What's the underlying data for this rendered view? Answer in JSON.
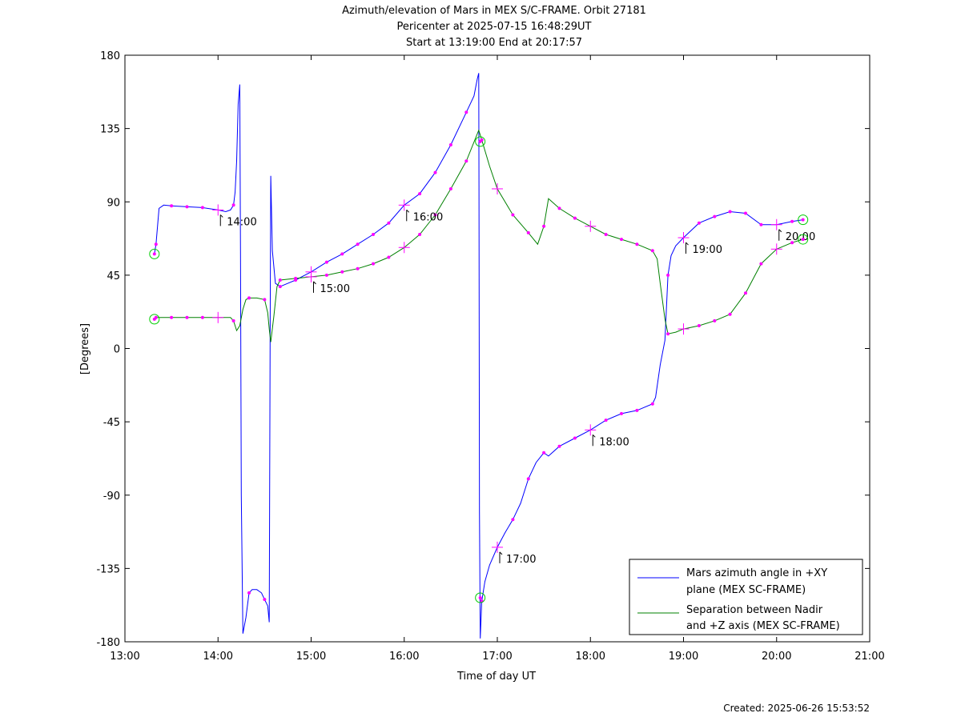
{
  "chart_data": {
    "type": "line",
    "title_lines": [
      "Azimuth/elevation of Mars in MEX S/C-FRAME.  Orbit 27181",
      "Pericenter at 2025-07-15 16:48:29UT",
      "Start at 13:19:00 End at 20:17:57"
    ],
    "xlabel": "Time of day UT",
    "ylabel": "[Degrees]",
    "xlim": [
      "13:00",
      "21:00"
    ],
    "ylim": [
      -180,
      180
    ],
    "x_ticks": [
      "13:00",
      "14:00",
      "15:00",
      "16:00",
      "17:00",
      "18:00",
      "19:00",
      "20:00",
      "21:00"
    ],
    "y_ticks": [
      "180",
      "135",
      "90",
      "45",
      "0",
      "-45",
      "-90",
      "-135",
      "-180"
    ],
    "grid": false,
    "legend_position": "bottom-right",
    "footer": "Created: 2025-06-26 15:53:52",
    "series": [
      {
        "name": "Mars azimuth angle in +XY plane (MEX SC-FRAME)",
        "legend_lines": [
          "Mars azimuth angle in +XY",
          "plane (MEX SC-FRAME)"
        ],
        "color": "#0000ff",
        "points": [
          [
            "13:19",
            58
          ],
          [
            "13:20",
            64
          ],
          [
            "13:22",
            86
          ],
          [
            "13:25",
            88
          ],
          [
            "13:30",
            87.5
          ],
          [
            "13:40",
            87
          ],
          [
            "13:50",
            86.5
          ],
          [
            "14:00",
            85
          ],
          [
            "14:05",
            84
          ],
          [
            "14:08",
            85
          ],
          [
            "14:10",
            88
          ],
          [
            "14:11",
            96
          ],
          [
            "14:12",
            115
          ],
          [
            "14:13",
            150
          ],
          [
            "14:14",
            162
          ],
          [
            "14:14.5",
            60
          ],
          [
            "14:15",
            -90
          ],
          [
            "14:16",
            -175
          ],
          [
            "14:18",
            -165
          ],
          [
            "14:20",
            -150
          ],
          [
            "14:22",
            -148
          ],
          [
            "14:25",
            -148
          ],
          [
            "14:28",
            -150
          ],
          [
            "14:30",
            -154
          ],
          [
            "14:32",
            -158
          ],
          [
            "14:33",
            -168
          ],
          [
            "14:33.6",
            20
          ],
          [
            "14:34",
            106
          ],
          [
            "14:35",
            60
          ],
          [
            "14:37",
            40
          ],
          [
            "14:40",
            38
          ],
          [
            "14:45",
            40
          ],
          [
            "14:50",
            42
          ],
          [
            "15:00",
            47
          ],
          [
            "15:10",
            53
          ],
          [
            "15:20",
            58
          ],
          [
            "15:30",
            64
          ],
          [
            "15:40",
            70
          ],
          [
            "15:50",
            77
          ],
          [
            "16:00",
            88
          ],
          [
            "16:10",
            95
          ],
          [
            "16:20",
            108
          ],
          [
            "16:30",
            125
          ],
          [
            "16:40",
            145
          ],
          [
            "16:45",
            155
          ],
          [
            "16:47",
            165
          ],
          [
            "16:48",
            169
          ],
          [
            "16:48.2",
            100
          ],
          [
            "16:48.5",
            -100
          ],
          [
            "16:49",
            -178
          ],
          [
            "16:50",
            -155
          ],
          [
            "16:52",
            -143
          ],
          [
            "16:55",
            -133
          ],
          [
            "17:00",
            -122
          ],
          [
            "17:05",
            -113
          ],
          [
            "17:10",
            -105
          ],
          [
            "17:15",
            -95
          ],
          [
            "17:20",
            -80
          ],
          [
            "17:25",
            -70
          ],
          [
            "17:30",
            -64
          ],
          [
            "17:33",
            -66
          ],
          [
            "17:40",
            -60
          ],
          [
            "17:50",
            -55
          ],
          [
            "18:00",
            -50
          ],
          [
            "18:10",
            -44
          ],
          [
            "18:20",
            -40
          ],
          [
            "18:30",
            -38
          ],
          [
            "18:40",
            -34
          ],
          [
            "18:42",
            -30
          ],
          [
            "18:45",
            -10
          ],
          [
            "18:48",
            5
          ],
          [
            "18:50",
            45
          ],
          [
            "18:52",
            57
          ],
          [
            "18:55",
            63
          ],
          [
            "19:00",
            68
          ],
          [
            "19:10",
            77
          ],
          [
            "19:20",
            81
          ],
          [
            "19:30",
            84
          ],
          [
            "19:40",
            83
          ],
          [
            "19:50",
            76
          ],
          [
            "20:00",
            76
          ],
          [
            "20:10",
            78
          ],
          [
            "20:17",
            79
          ]
        ]
      },
      {
        "name": "Separation between Nadir and +Z axis (MEX SC-FRAME)",
        "legend_lines": [
          "Separation between Nadir",
          "and +Z axis (MEX SC-FRAME)"
        ],
        "color": "#008000",
        "points": [
          [
            "13:19",
            18
          ],
          [
            "13:20",
            19
          ],
          [
            "13:30",
            19
          ],
          [
            "13:40",
            19
          ],
          [
            "13:50",
            19
          ],
          [
            "14:00",
            19
          ],
          [
            "14:08",
            19
          ],
          [
            "14:10",
            17
          ],
          [
            "14:12",
            11
          ],
          [
            "14:14",
            14
          ],
          [
            "14:16",
            24
          ],
          [
            "14:18",
            30
          ],
          [
            "14:20",
            31
          ],
          [
            "14:25",
            31
          ],
          [
            "14:30",
            30
          ],
          [
            "14:32",
            22
          ],
          [
            "14:33",
            12
          ],
          [
            "14:34",
            4
          ],
          [
            "14:36",
            20
          ],
          [
            "14:38",
            38
          ],
          [
            "14:40",
            42
          ],
          [
            "14:50",
            43
          ],
          [
            "15:00",
            44
          ],
          [
            "15:10",
            45
          ],
          [
            "15:20",
            47
          ],
          [
            "15:30",
            49
          ],
          [
            "15:40",
            52
          ],
          [
            "15:50",
            56
          ],
          [
            "16:00",
            62
          ],
          [
            "16:10",
            70
          ],
          [
            "16:20",
            82
          ],
          [
            "16:30",
            98
          ],
          [
            "16:40",
            115
          ],
          [
            "16:48",
            134
          ],
          [
            "16:50",
            128
          ],
          [
            "16:55",
            112
          ],
          [
            "17:00",
            98
          ],
          [
            "17:10",
            82
          ],
          [
            "17:20",
            71
          ],
          [
            "17:26",
            64
          ],
          [
            "17:30",
            75
          ],
          [
            "17:33",
            92
          ],
          [
            "17:40",
            86
          ],
          [
            "17:50",
            80
          ],
          [
            "18:00",
            75
          ],
          [
            "18:10",
            70
          ],
          [
            "18:20",
            67
          ],
          [
            "18:30",
            64
          ],
          [
            "18:40",
            60
          ],
          [
            "18:43",
            55
          ],
          [
            "18:45",
            40
          ],
          [
            "18:48",
            18
          ],
          [
            "18:50",
            9
          ],
          [
            "18:55",
            10
          ],
          [
            "19:00",
            12
          ],
          [
            "19:10",
            14
          ],
          [
            "19:20",
            17
          ],
          [
            "19:30",
            21
          ],
          [
            "19:40",
            34
          ],
          [
            "19:50",
            52
          ],
          [
            "20:00",
            61
          ],
          [
            "20:10",
            65
          ],
          [
            "20:17",
            67
          ]
        ]
      }
    ],
    "start_markers": [
      [
        "13:19",
        58
      ],
      [
        "13:19",
        18
      ]
    ],
    "end_markers": [
      [
        "20:17",
        79
      ],
      [
        "20:17",
        67
      ]
    ],
    "pericenter_markers": [
      [
        "16:49",
        -153
      ],
      [
        "16:49",
        127
      ]
    ],
    "hour_marks": [
      {
        "x": "14:00",
        "label": "14:00",
        "series": 0
      },
      {
        "x": "15:00",
        "label": "15:00",
        "series": 1
      },
      {
        "x": "16:00",
        "label": "16:00",
        "series": 0
      },
      {
        "x": "17:00",
        "label": "17:00",
        "series": 0
      },
      {
        "x": "18:00",
        "label": "18:00",
        "series": 0
      },
      {
        "x": "19:00",
        "label": "19:00",
        "series": 0
      },
      {
        "x": "20:00",
        "label": "20:00",
        "series": 0
      }
    ]
  }
}
